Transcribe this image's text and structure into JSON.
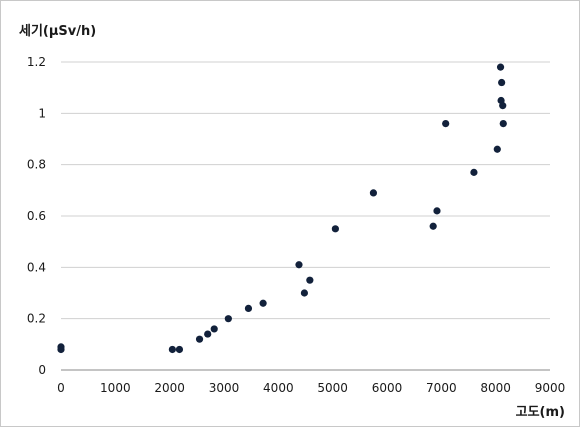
{
  "chart_data": {
    "type": "scatter",
    "ylabel": "세기(μSv/h)",
    "xlabel": "고도(m)",
    "xlim": [
      0,
      9000
    ],
    "ylim": [
      0,
      1.2
    ],
    "xticks": [
      0,
      1000,
      2000,
      3000,
      4000,
      5000,
      6000,
      7000,
      8000,
      9000
    ],
    "yticks": [
      0,
      0.2,
      0.4,
      0.6,
      0.8,
      1,
      1.2
    ],
    "grid": "horizontal",
    "legend": "none",
    "marker_color": "#12213b",
    "points": [
      {
        "x": 0,
        "y": 0.09
      },
      {
        "x": 0,
        "y": 0.08
      },
      {
        "x": 2050,
        "y": 0.08
      },
      {
        "x": 2180,
        "y": 0.08
      },
      {
        "x": 2550,
        "y": 0.12
      },
      {
        "x": 2700,
        "y": 0.14
      },
      {
        "x": 2820,
        "y": 0.16
      },
      {
        "x": 3080,
        "y": 0.2
      },
      {
        "x": 3450,
        "y": 0.24
      },
      {
        "x": 3720,
        "y": 0.26
      },
      {
        "x": 4380,
        "y": 0.41
      },
      {
        "x": 4480,
        "y": 0.3
      },
      {
        "x": 4580,
        "y": 0.35
      },
      {
        "x": 5050,
        "y": 0.55
      },
      {
        "x": 5750,
        "y": 0.69
      },
      {
        "x": 6850,
        "y": 0.56
      },
      {
        "x": 6920,
        "y": 0.62
      },
      {
        "x": 7080,
        "y": 0.96
      },
      {
        "x": 7600,
        "y": 0.77
      },
      {
        "x": 8030,
        "y": 0.86
      },
      {
        "x": 8090,
        "y": 1.18
      },
      {
        "x": 8100,
        "y": 1.05
      },
      {
        "x": 8110,
        "y": 1.12
      },
      {
        "x": 8130,
        "y": 1.03
      },
      {
        "x": 8140,
        "y": 0.96
      }
    ]
  }
}
